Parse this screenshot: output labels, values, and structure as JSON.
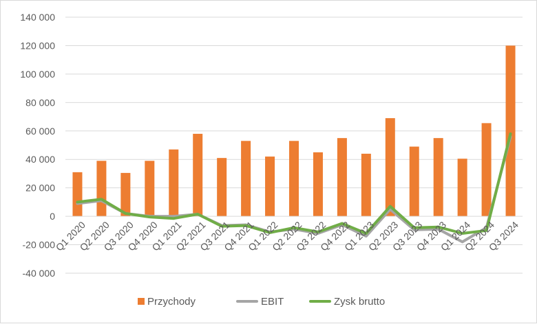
{
  "chart_data": {
    "type": "bar",
    "title": "",
    "xlabel": "",
    "ylabel": "",
    "categories": [
      "Q1 2020",
      "Q2 2020",
      "Q3 2020",
      "Q4 2020",
      "Q1 2021",
      "Q2 2021",
      "Q3 2021",
      "Q4 2021",
      "Q1 2022",
      "Q2 2022",
      "Q3 2022",
      "Q4 2022",
      "Q1 2023",
      "Q2 2023",
      "Q3 2023",
      "Q4 2023",
      "Q1 2024",
      "Q2 2024",
      "Q3 2024"
    ],
    "ylim": [
      -40000,
      140000
    ],
    "yticks": [
      -40000,
      -20000,
      0,
      20000,
      40000,
      60000,
      80000,
      100000,
      120000,
      140000
    ],
    "ytick_labels": [
      "-40 000",
      "-20 000",
      "0",
      "20 000",
      "40 000",
      "60 000",
      "80 000",
      "100 000",
      "120 000",
      "140 000"
    ],
    "grid": true,
    "legend_position": "bottom",
    "series": [
      {
        "name": "Przychody",
        "type": "bar",
        "color": "#ED7D31",
        "values": [
          31000,
          39000,
          30500,
          39000,
          47000,
          58000,
          41000,
          53000,
          42000,
          53000,
          45000,
          55000,
          44000,
          69000,
          49000,
          55000,
          40500,
          65500,
          120000
        ]
      },
      {
        "name": "EBIT",
        "type": "line",
        "color": "#A5A5A5",
        "values": [
          9000,
          11000,
          2000,
          0,
          0,
          1500,
          -6500,
          -6000,
          -11000,
          -9000,
          -12000,
          -6000,
          -14000,
          5000,
          -9500,
          -9000,
          -18000,
          -8000,
          56000
        ]
      },
      {
        "name": "Zysk brutto",
        "type": "line",
        "color": "#70AD47",
        "values": [
          10000,
          12000,
          2000,
          -500,
          -1500,
          1500,
          -7000,
          -6500,
          -11500,
          -8000,
          -11000,
          -5000,
          -12000,
          7000,
          -8000,
          -7500,
          -12000,
          -10000,
          58000
        ]
      }
    ]
  }
}
